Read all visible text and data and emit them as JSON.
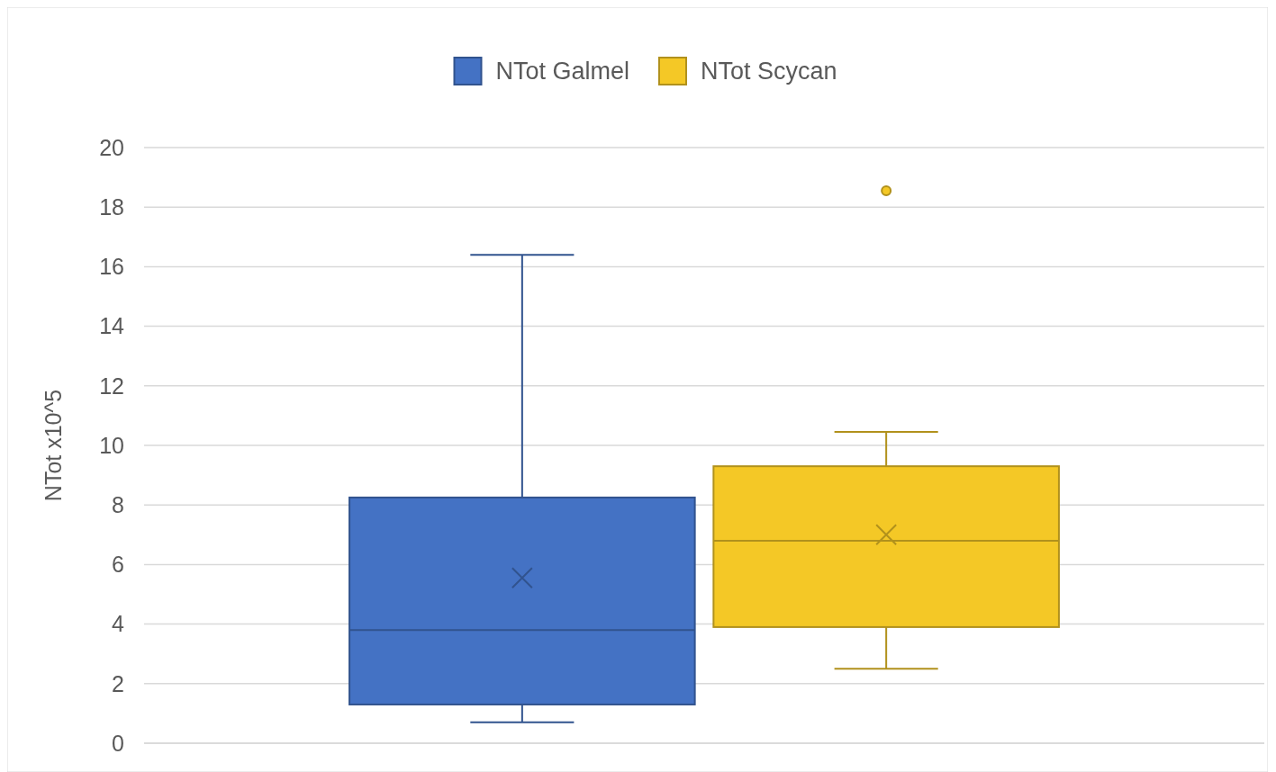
{
  "chart_data": {
    "type": "box",
    "ylabel": "NTot x10^5",
    "categories": [
      null
    ],
    "ylim": [
      0,
      20
    ],
    "yticks": [
      0,
      2,
      4,
      6,
      8,
      10,
      12,
      14,
      16,
      18,
      20
    ],
    "grid": "y",
    "legend": "top",
    "tick_labels": "y",
    "series": [
      {
        "name": "NTot Galmel",
        "color": "#4472c4",
        "boxes": [
          {
            "low": 0.7,
            "q1": 1.3,
            "median": 3.8,
            "q3": 8.25,
            "high": 16.4,
            "mean": 5.55
          }
        ]
      },
      {
        "name": "NTot Scycan",
        "color": "#f4c826",
        "boxes": [
          {
            "low": 2.5,
            "q1": 3.9,
            "median": 6.8,
            "q3": 9.3,
            "high": 10.45,
            "mean": 7.0,
            "outliers": [
              18.55
            ]
          }
        ]
      }
    ]
  }
}
